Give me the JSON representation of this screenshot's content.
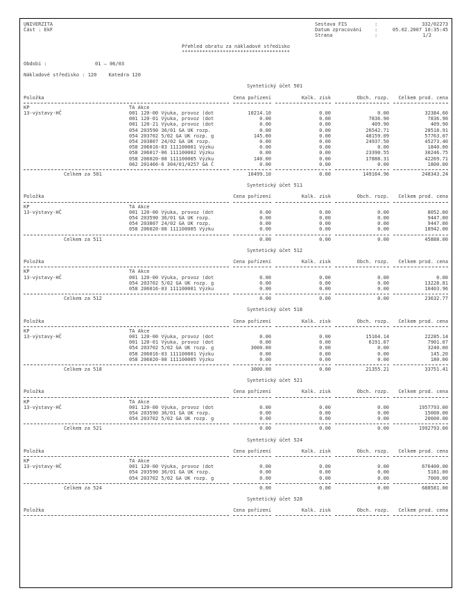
{
  "page": {
    "org_name": "UNIVERZITA",
    "cast": "Část : EkF",
    "meta": [
      {
        "label": "Sestava FIS",
        "value": "332/02273"
      },
      {
        "label": "Datum zpracování",
        "value": "05.02.2007 10:35:45"
      },
      {
        "label": "Strana",
        "value": "1/2"
      }
    ],
    "title": "Přehled obratu za nákladové středisko",
    "title_stars": "*************************************",
    "obdobi_label": "Období :",
    "obdobi_value": "01 — 06/03",
    "stredisko": "Nákladové středisko : 120",
    "katedra": "Katedra 120"
  },
  "columns": {
    "item": "Položka",
    "c1": "Cena pořízení",
    "c2": "Kalk. zisk",
    "c3": "Obch. rozp.",
    "c4": "Celkem prod. cena"
  },
  "labels": {
    "kp_header": "KP",
    "ta_header": "TA Akce",
    "kp_label": "13-výstavy-HČ",
    "section_prefix": "Syntetický účet",
    "total_prefix": "Celkem za"
  },
  "sections": [
    {
      "ucet": "501",
      "rows": [
        {
          "akce": "001 120-00 Výuka, provoz (dot",
          "v": [
            "10214.10",
            "0.00",
            "0.00",
            "32384.60"
          ]
        },
        {
          "akce": "001 120-01 Výuka, provoz (dot",
          "v": [
            "0.00",
            "0.00",
            "7836.90",
            "7836.90"
          ]
        },
        {
          "akce": "001 120-21 Výuka, provoz (dot",
          "v": [
            "0.00",
            "0.00",
            "409.90",
            "409.90"
          ]
        },
        {
          "akce": "054 203590 36/01 GA UK rozp.",
          "v": [
            "0.00",
            "0.00",
            "26542.71",
            "28518.91"
          ]
        },
        {
          "akce": "054 203702 5/02 GA UK rozp. g",
          "v": [
            "145.00",
            "0.00",
            "48159.09",
            "57763.07"
          ]
        },
        {
          "akce": "054 203807 24/02 GA UK rozp.",
          "v": [
            "0.00",
            "0.00",
            "24937.50",
            "45273.40"
          ]
        },
        {
          "akce": "058 206016-03 111100001 Výzku",
          "v": [
            "0.00",
            "0.00",
            "0.00",
            "1840.00"
          ]
        },
        {
          "akce": "058 206017-06 111100002 Výzku",
          "v": [
            "0.00",
            "0.00",
            "23390.55",
            "30246.75"
          ]
        },
        {
          "akce": "058 206020-08 111100005 Výzku",
          "v": [
            "140.00",
            "0.00",
            "17888.31",
            "42269.71"
          ]
        },
        {
          "akce": "062 201466-6 304/01/0257 GA Č",
          "v": [
            "0.00",
            "0.00",
            "0.00",
            "1800.00"
          ]
        }
      ],
      "total": [
        "10499.10",
        "0.00",
        "149164.96",
        "248343.24"
      ]
    },
    {
      "ucet": "511",
      "rows": [
        {
          "akce": "001 120-00 Výuka, provoz (dot",
          "v": [
            "0.00",
            "0.00",
            "0.00",
            "8052.00"
          ]
        },
        {
          "akce": "054 203590 36/01 GA UK rozp.",
          "v": [
            "0.00",
            "0.00",
            "0.00",
            "9447.00"
          ]
        },
        {
          "akce": "054 203807 24/02 GA UK rozp.",
          "v": [
            "0.00",
            "0.00",
            "0.00",
            "9447.00"
          ]
        },
        {
          "akce": "058 206020-08 111100005 Výzku",
          "v": [
            "0.00",
            "0.00",
            "0.00",
            "18942.00"
          ]
        }
      ],
      "total": [
        "0.00",
        "0.00",
        "0.00",
        "45888.00"
      ]
    },
    {
      "ucet": "512",
      "rows": [
        {
          "akce": "001 120-00 Výuka, provoz (dot",
          "v": [
            "0.00",
            "0.00",
            "0.00",
            "0.00"
          ]
        },
        {
          "akce": "054 203702 5/02 GA UK rozp. g",
          "v": [
            "0.00",
            "0.00",
            "0.00",
            "13228.81"
          ]
        },
        {
          "akce": "058 206016-03 111100001 Výzku",
          "v": [
            "0.00",
            "0.00",
            "0.00",
            "10403.96"
          ]
        }
      ],
      "total": [
        "0.00",
        "0.00",
        "0.00",
        "23632.77"
      ]
    },
    {
      "ucet": "518",
      "rows": [
        {
          "akce": "001 120-00 Výuka, provoz (dot",
          "v": [
            "0.00",
            "0.00",
            "15164.14",
            "22285.14"
          ]
        },
        {
          "akce": "001 120-01 Výuka, provoz (dot",
          "v": [
            "0.00",
            "0.00",
            "6191.07",
            "7901.07"
          ]
        },
        {
          "akce": "054 203702 5/02 GA UK rozp. g",
          "v": [
            "3000.00",
            "0.00",
            "0.00",
            "3240.00"
          ]
        },
        {
          "akce": "058 206016-03 111100001 Výzku",
          "v": [
            "0.00",
            "0.00",
            "0.00",
            "145.20"
          ]
        },
        {
          "akce": "058 206020-08 111100005 Výzku",
          "v": [
            "0.00",
            "0.00",
            "0.00",
            "180.00"
          ]
        }
      ],
      "total": [
        "3000.00",
        "0.00",
        "21355.21",
        "33751.41"
      ]
    },
    {
      "ucet": "521",
      "rows": [
        {
          "akce": "001 120-00 Výuka, provoz (dot",
          "v": [
            "0.00",
            "0.00",
            "0.00",
            "1957793.00"
          ]
        },
        {
          "akce": "054 203590 36/01 GA UK rozp.",
          "v": [
            "0.00",
            "0.00",
            "0.00",
            "15000.00"
          ]
        },
        {
          "akce": "054 203702 5/02 GA UK rozp. g",
          "v": [
            "0.00",
            "0.00",
            "0.00",
            "20000.00"
          ]
        }
      ],
      "total": [
        "0.00",
        "0.00",
        "0.00",
        "1992793.00"
      ]
    },
    {
      "ucet": "524",
      "rows": [
        {
          "akce": "001 120-00 Výuka, provoz (dot",
          "v": [
            "0.00",
            "0.00",
            "0.00",
            "676400.00"
          ]
        },
        {
          "akce": "054 203590 36/01 GA UK rozp.",
          "v": [
            "0.00",
            "0.00",
            "0.00",
            "5181.00"
          ]
        },
        {
          "akce": "054 203702 5/02 GA UK rozp. g",
          "v": [
            "0.00",
            "0.00",
            "0.00",
            "7000.00"
          ]
        }
      ],
      "total": [
        "0.00",
        "0.00",
        "0.00",
        "688581.00"
      ]
    },
    {
      "ucet": "528",
      "rows": [],
      "total": null
    }
  ]
}
